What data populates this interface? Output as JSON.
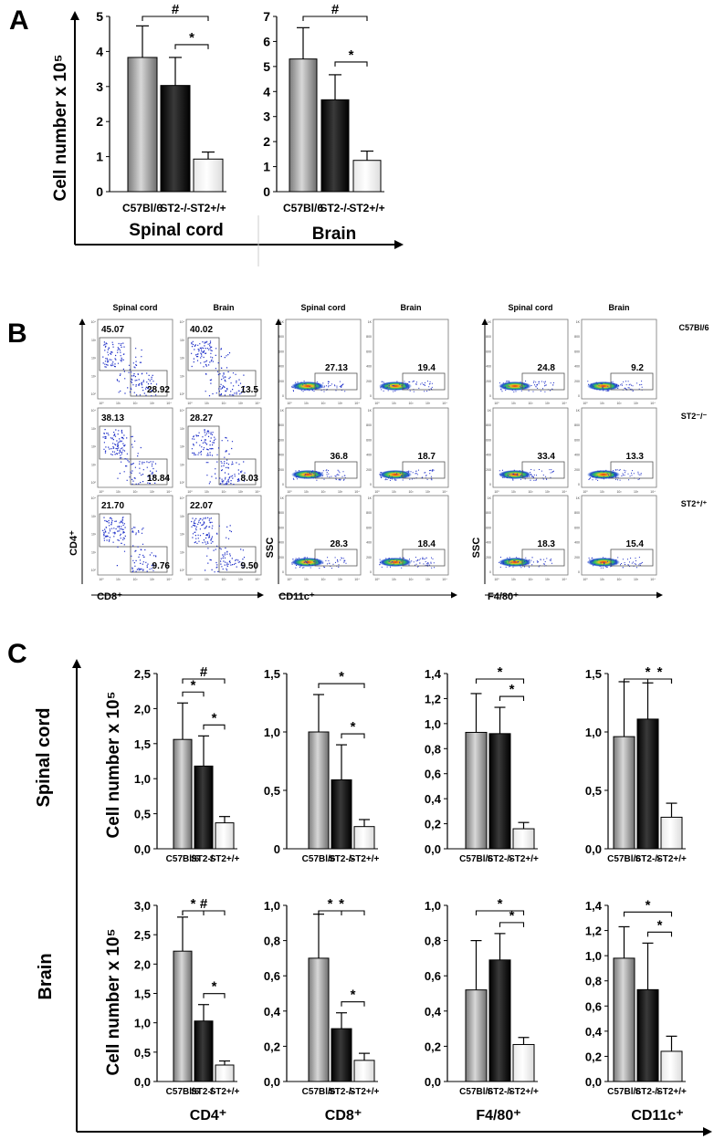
{
  "panels": {
    "a": "A",
    "b": "B",
    "c": "C"
  },
  "categories": [
    "C57Bl/6",
    "ST2-/-",
    "ST2+/+"
  ],
  "colors": {
    "c57": "#9a9a9a",
    "st2ko": "#111111",
    "st2wt": "#f4f4f4",
    "flow_dot": "#1e2fc8"
  },
  "panel_a": {
    "ylabel": "Cell number x 10⁵",
    "xlabels": [
      "Spinal cord",
      "Brain"
    ]
  },
  "panel_b": {
    "col_titles": [
      "Spinal cord",
      "Brain",
      "Spinal cord",
      "Brain",
      "Spinal cord",
      "Brain"
    ],
    "row_labels": [
      "C57Bl/6",
      "ST2⁻/⁻",
      "ST2⁺/⁺"
    ],
    "group_ylabels": [
      "CD4⁺",
      "SSC",
      "SSC"
    ],
    "group_xlabels": [
      "CD8⁺",
      "CD11c⁺",
      "F4/80⁺"
    ],
    "cd4cd8": [
      [
        {
          "cd4": "45.07",
          "cd8": "28.92"
        },
        {
          "cd4": "40.02",
          "cd8": "13.5"
        }
      ],
      [
        {
          "cd4": "38.13",
          "cd8": "18.84"
        },
        {
          "cd4": "28.27",
          "cd8": "8.03"
        }
      ],
      [
        {
          "cd4": "21.70",
          "cd8": "9.76"
        },
        {
          "cd4": "22.07",
          "cd8": "9.50"
        }
      ]
    ],
    "cd11c": [
      [
        "27.13",
        "19.4"
      ],
      [
        "36.8",
        "18.7"
      ],
      [
        "28.3",
        "18.4"
      ]
    ],
    "f480": [
      [
        "24.8",
        "9.2"
      ],
      [
        "33.4",
        "13.3"
      ],
      [
        "18.3",
        "15.4"
      ]
    ],
    "ssc_ticks": [
      "1K",
      "800",
      "600",
      "400",
      "200",
      "0"
    ],
    "log_ticks": [
      "10⁰",
      "10¹",
      "10²",
      "10³",
      "10⁴"
    ]
  },
  "panel_c": {
    "row_labels": [
      "Spinal cord",
      "Brain"
    ],
    "ylabel": "Cell number x 10⁵",
    "col_labels": [
      "CD4⁺",
      "CD8⁺",
      "F4/80⁺",
      "CD11c⁺"
    ]
  },
  "chart_data": [
    {
      "type": "bar",
      "panel": "A",
      "group": "Spinal cord",
      "categories": [
        "C57Bl/6",
        "ST2-/-",
        "ST2+/+"
      ],
      "values": [
        3.83,
        3.03,
        0.93
      ],
      "errors": [
        0.9,
        0.8,
        0.2
      ],
      "ylim": [
        0,
        5
      ],
      "yticks": [
        "0",
        "1",
        "2",
        "3",
        "4",
        "5"
      ],
      "significance": [
        {
          "from": 0,
          "to": 2,
          "label": "#"
        },
        {
          "from": 1,
          "to": 2,
          "label": "*"
        }
      ]
    },
    {
      "type": "bar",
      "panel": "A",
      "group": "Brain",
      "categories": [
        "C57Bl/6",
        "ST2-/-",
        "ST2+/+"
      ],
      "values": [
        5.3,
        3.67,
        1.25
      ],
      "errors": [
        1.25,
        1.0,
        0.37
      ],
      "ylim": [
        0,
        7
      ],
      "yticks": [
        "0",
        "1",
        "2",
        "3",
        "4",
        "5",
        "6",
        "7"
      ],
      "significance": [
        {
          "from": 0,
          "to": 2,
          "label": "#"
        },
        {
          "from": 1,
          "to": 2,
          "label": "*"
        }
      ]
    },
    {
      "type": "bar",
      "panel": "C",
      "tissue": "Spinal cord",
      "cell": "CD4+",
      "categories": [
        "C57Bl/6",
        "ST2-/-",
        "ST2+/+"
      ],
      "values": [
        1.56,
        1.18,
        0.37
      ],
      "errors": [
        0.52,
        0.43,
        0.09
      ],
      "ylim": [
        0,
        2.5
      ],
      "yticks": [
        "0,0",
        "0,5",
        "1,0",
        "1,5",
        "2,0",
        "2,5"
      ],
      "significance": [
        {
          "from": 0,
          "to": 2,
          "label": "#"
        },
        {
          "from": 0,
          "to": 1,
          "label": "*"
        },
        {
          "from": 1,
          "to": 2,
          "label": "*"
        }
      ]
    },
    {
      "type": "bar",
      "panel": "C",
      "tissue": "Spinal cord",
      "cell": "CD8+",
      "categories": [
        "C57Bl/6",
        "ST2-/-",
        "ST2+/+"
      ],
      "values": [
        1.0,
        0.59,
        0.19
      ],
      "errors": [
        0.32,
        0.3,
        0.06
      ],
      "ylim": [
        0,
        1.5
      ],
      "yticks": [
        "0",
        "0,5",
        "1,0",
        "1,5"
      ],
      "significance": [
        {
          "from": 0,
          "to": 2,
          "label": "*"
        },
        {
          "from": 1,
          "to": 2,
          "label": "*"
        }
      ]
    },
    {
      "type": "bar",
      "panel": "C",
      "tissue": "Spinal cord",
      "cell": "F4/80+",
      "categories": [
        "C57Bl/6",
        "ST2-/-",
        "ST2+/+"
      ],
      "values": [
        0.93,
        0.92,
        0.16
      ],
      "errors": [
        0.31,
        0.21,
        0.05
      ],
      "ylim": [
        0,
        1.4
      ],
      "yticks": [
        "0,0",
        "0,2",
        "0,4",
        "0,6",
        "0,8",
        "1,0",
        "1,2",
        "1,4"
      ],
      "significance": [
        {
          "from": 0,
          "to": 2,
          "label": "*"
        },
        {
          "from": 1,
          "to": 2,
          "label": "*"
        }
      ]
    },
    {
      "type": "bar",
      "panel": "C",
      "tissue": "Spinal cord",
      "cell": "CD11c+",
      "categories": [
        "C57Bl/6",
        "ST2-/-",
        "ST2+/+"
      ],
      "values": [
        0.96,
        1.11,
        0.27
      ],
      "errors": [
        0.47,
        0.31,
        0.12
      ],
      "ylim": [
        0,
        1.5
      ],
      "yticks": [
        "0,0",
        "0,5",
        "1,0",
        "1,5"
      ],
      "significance": [
        {
          "from": 0,
          "to": 2,
          "label": "*"
        },
        {
          "from": 1,
          "to": 2,
          "label": "*"
        }
      ]
    },
    {
      "type": "bar",
      "panel": "C",
      "tissue": "Brain",
      "cell": "CD4+",
      "categories": [
        "C57Bl/6",
        "ST2-/-",
        "ST2+/+"
      ],
      "values": [
        2.22,
        1.03,
        0.28
      ],
      "errors": [
        0.58,
        0.28,
        0.07
      ],
      "ylim": [
        0,
        3.0
      ],
      "yticks": [
        "0,0",
        "0,5",
        "1,0",
        "1,5",
        "2,0",
        "2,5",
        "3,0"
      ],
      "significance": [
        {
          "from": 0,
          "to": 2,
          "label": "#"
        },
        {
          "from": 0,
          "to": 1,
          "label": "*"
        },
        {
          "from": 1,
          "to": 2,
          "label": "*"
        }
      ]
    },
    {
      "type": "bar",
      "panel": "C",
      "tissue": "Brain",
      "cell": "CD8+",
      "categories": [
        "C57Bl/6",
        "ST2-/-",
        "ST2+/+"
      ],
      "values": [
        0.7,
        0.3,
        0.12
      ],
      "errors": [
        0.25,
        0.09,
        0.04
      ],
      "ylim": [
        0,
        1.0
      ],
      "yticks": [
        "0,0",
        "0,2",
        "0,4",
        "0,6",
        "0,8",
        "1,0"
      ],
      "significance": [
        {
          "from": 0,
          "to": 2,
          "label": "*"
        },
        {
          "from": 0,
          "to": 1,
          "label": "*"
        },
        {
          "from": 1,
          "to": 2,
          "label": "*"
        }
      ]
    },
    {
      "type": "bar",
      "panel": "C",
      "tissue": "Brain",
      "cell": "F4/80+",
      "categories": [
        "C57Bl/6",
        "ST2-/-",
        "ST2+/+"
      ],
      "values": [
        0.52,
        0.69,
        0.21
      ],
      "errors": [
        0.28,
        0.15,
        0.04
      ],
      "ylim": [
        0,
        1.0
      ],
      "yticks": [
        "0,0",
        "0,2",
        "0,4",
        "0,6",
        "0,8",
        "1,0"
      ],
      "significance": [
        {
          "from": 0,
          "to": 2,
          "label": "*"
        },
        {
          "from": 1,
          "to": 2,
          "label": "*"
        }
      ]
    },
    {
      "type": "bar",
      "panel": "C",
      "tissue": "Brain",
      "cell": "CD11c+",
      "categories": [
        "C57Bl/6",
        "ST2-/-",
        "ST2+/+"
      ],
      "values": [
        0.98,
        0.73,
        0.24
      ],
      "errors": [
        0.25,
        0.37,
        0.12
      ],
      "ylim": [
        0,
        1.4
      ],
      "yticks": [
        "0,0",
        "0,2",
        "0,4",
        "0,6",
        "0,8",
        "1,0",
        "1,2",
        "1,4"
      ],
      "significance": [
        {
          "from": 0,
          "to": 2,
          "label": "*"
        },
        {
          "from": 1,
          "to": 2,
          "label": "*"
        }
      ]
    }
  ]
}
